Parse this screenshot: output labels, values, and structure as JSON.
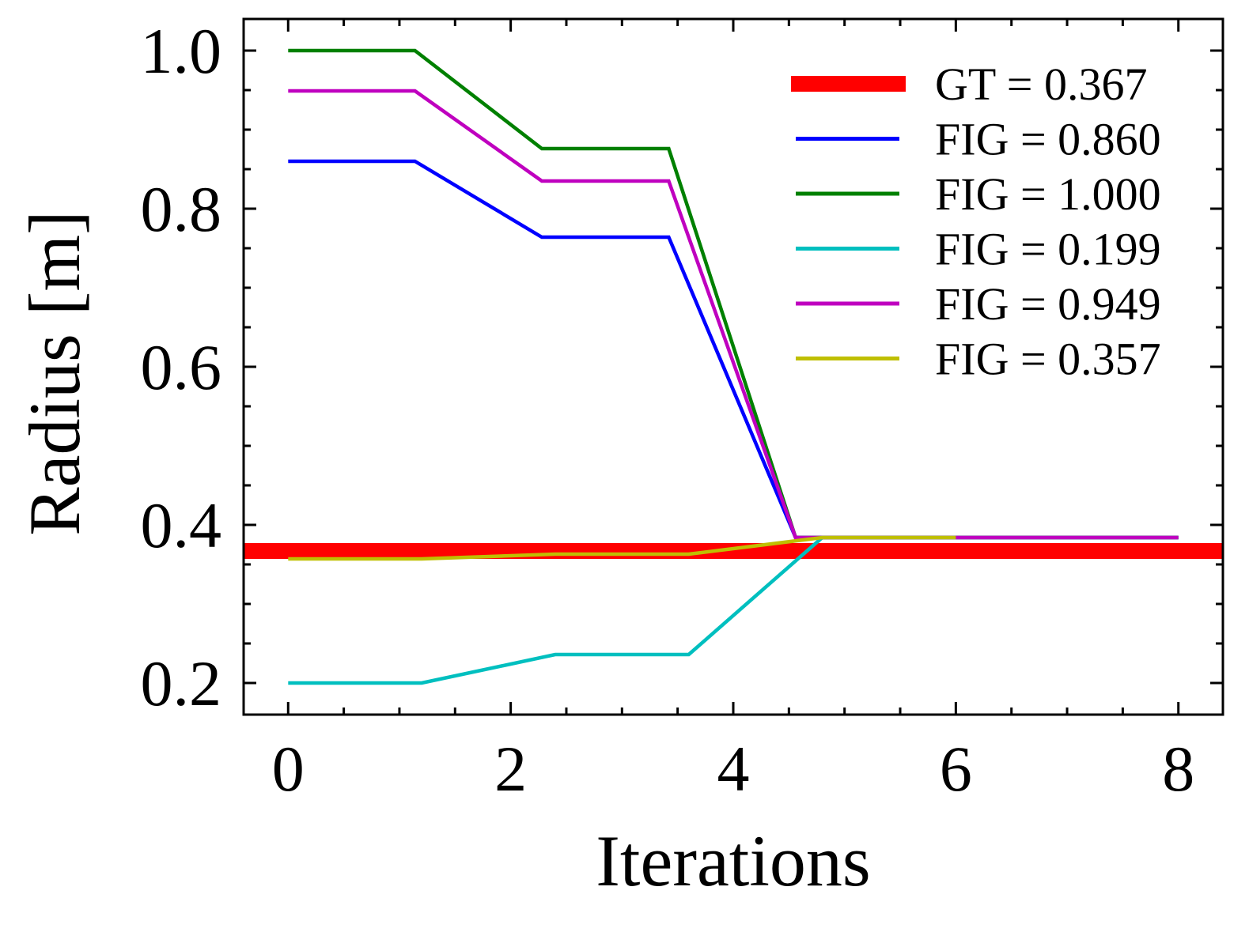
{
  "chart_data": {
    "type": "line",
    "xlabel": "Iterations",
    "ylabel": "Radius [m]",
    "xlim": [
      -0.4,
      8.4
    ],
    "ylim": [
      0.16,
      1.04
    ],
    "xticks": [
      0,
      2,
      4,
      6,
      8
    ],
    "xtick_labels": [
      "0",
      "2",
      "4",
      "6",
      "8"
    ],
    "yticks": [
      0.2,
      0.4,
      0.6,
      0.8,
      1.0
    ],
    "ytick_labels": [
      "0.2",
      "0.4",
      "0.6",
      "0.8",
      "1.0"
    ],
    "x_minor_step": 0.5,
    "y_minor_step": 0.05,
    "grid": false,
    "legend_position": "top-right",
    "reference_line": {
      "name": "GT = 0.367",
      "value": 0.367,
      "color": "#ff0000"
    },
    "series": [
      {
        "name": "FIG = 0.860",
        "color": "#0000ff",
        "x": [
          0,
          1.14,
          2.28,
          3.42,
          4.56,
          5.7,
          6.84,
          8
        ],
        "y": [
          0.86,
          0.86,
          0.764,
          0.764,
          0.384,
          0.384,
          0.384,
          0.384
        ]
      },
      {
        "name": "FIG = 1.000",
        "color": "#008000",
        "x": [
          0,
          1.14,
          2.28,
          3.42,
          4.56,
          5.7,
          6.84,
          8
        ],
        "y": [
          1.0,
          1.0,
          0.876,
          0.876,
          0.384,
          0.384,
          0.384,
          0.384
        ]
      },
      {
        "name": "FIG = 0.199",
        "color": "#00bfbf",
        "x": [
          0,
          1.2,
          2.4,
          3.6,
          4.8,
          6.0
        ],
        "y": [
          0.2,
          0.2,
          0.236,
          0.236,
          0.384,
          0.384
        ]
      },
      {
        "name": "FIG = 0.949",
        "color": "#bf00bf",
        "x": [
          0,
          1.14,
          2.28,
          3.42,
          4.56,
          5.7,
          6.84,
          8
        ],
        "y": [
          0.949,
          0.949,
          0.835,
          0.835,
          0.384,
          0.384,
          0.384,
          0.384
        ]
      },
      {
        "name": "FIG = 0.357",
        "color": "#bfbf00",
        "x": [
          0,
          1.2,
          2.4,
          3.6,
          4.8,
          6.0
        ],
        "y": [
          0.357,
          0.357,
          0.363,
          0.363,
          0.384,
          0.384
        ]
      }
    ]
  }
}
